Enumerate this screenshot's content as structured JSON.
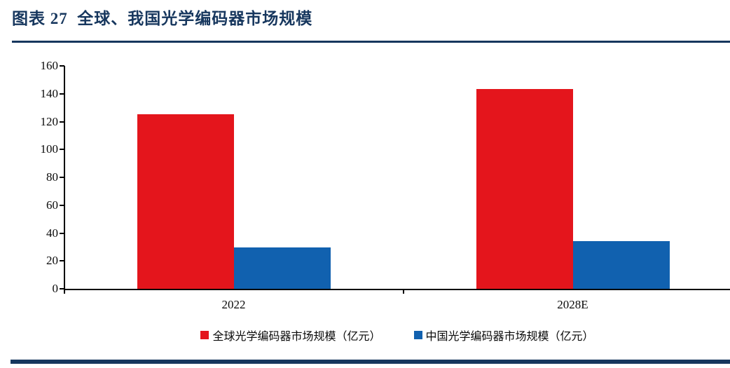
{
  "figure": {
    "title": "图表 27  全球、我国光学编码器市场规模"
  },
  "colors": {
    "navy_accent": "#17375E",
    "axis": "#000000",
    "series_red": "#E4151C",
    "series_blue": "#1161AF"
  },
  "chart_data": {
    "type": "bar",
    "title": "全球、我国光学编码器市场规模",
    "categories": [
      "2022",
      "2028E"
    ],
    "series": [
      {
        "name": "全球光学编码器市场规模（亿元）",
        "color": "#E4151C",
        "values": [
          125.3,
          143.5
        ]
      },
      {
        "name": "中国光学编码器市场规模（亿元）",
        "color": "#1161AF",
        "values": [
          29.7,
          34.3
        ]
      }
    ],
    "xlabel": "",
    "ylabel": "",
    "ylim": [
      0,
      160
    ],
    "yticks": [
      0,
      20,
      40,
      60,
      80,
      100,
      120,
      140,
      160
    ],
    "grid": false,
    "legend_position": "bottom"
  }
}
